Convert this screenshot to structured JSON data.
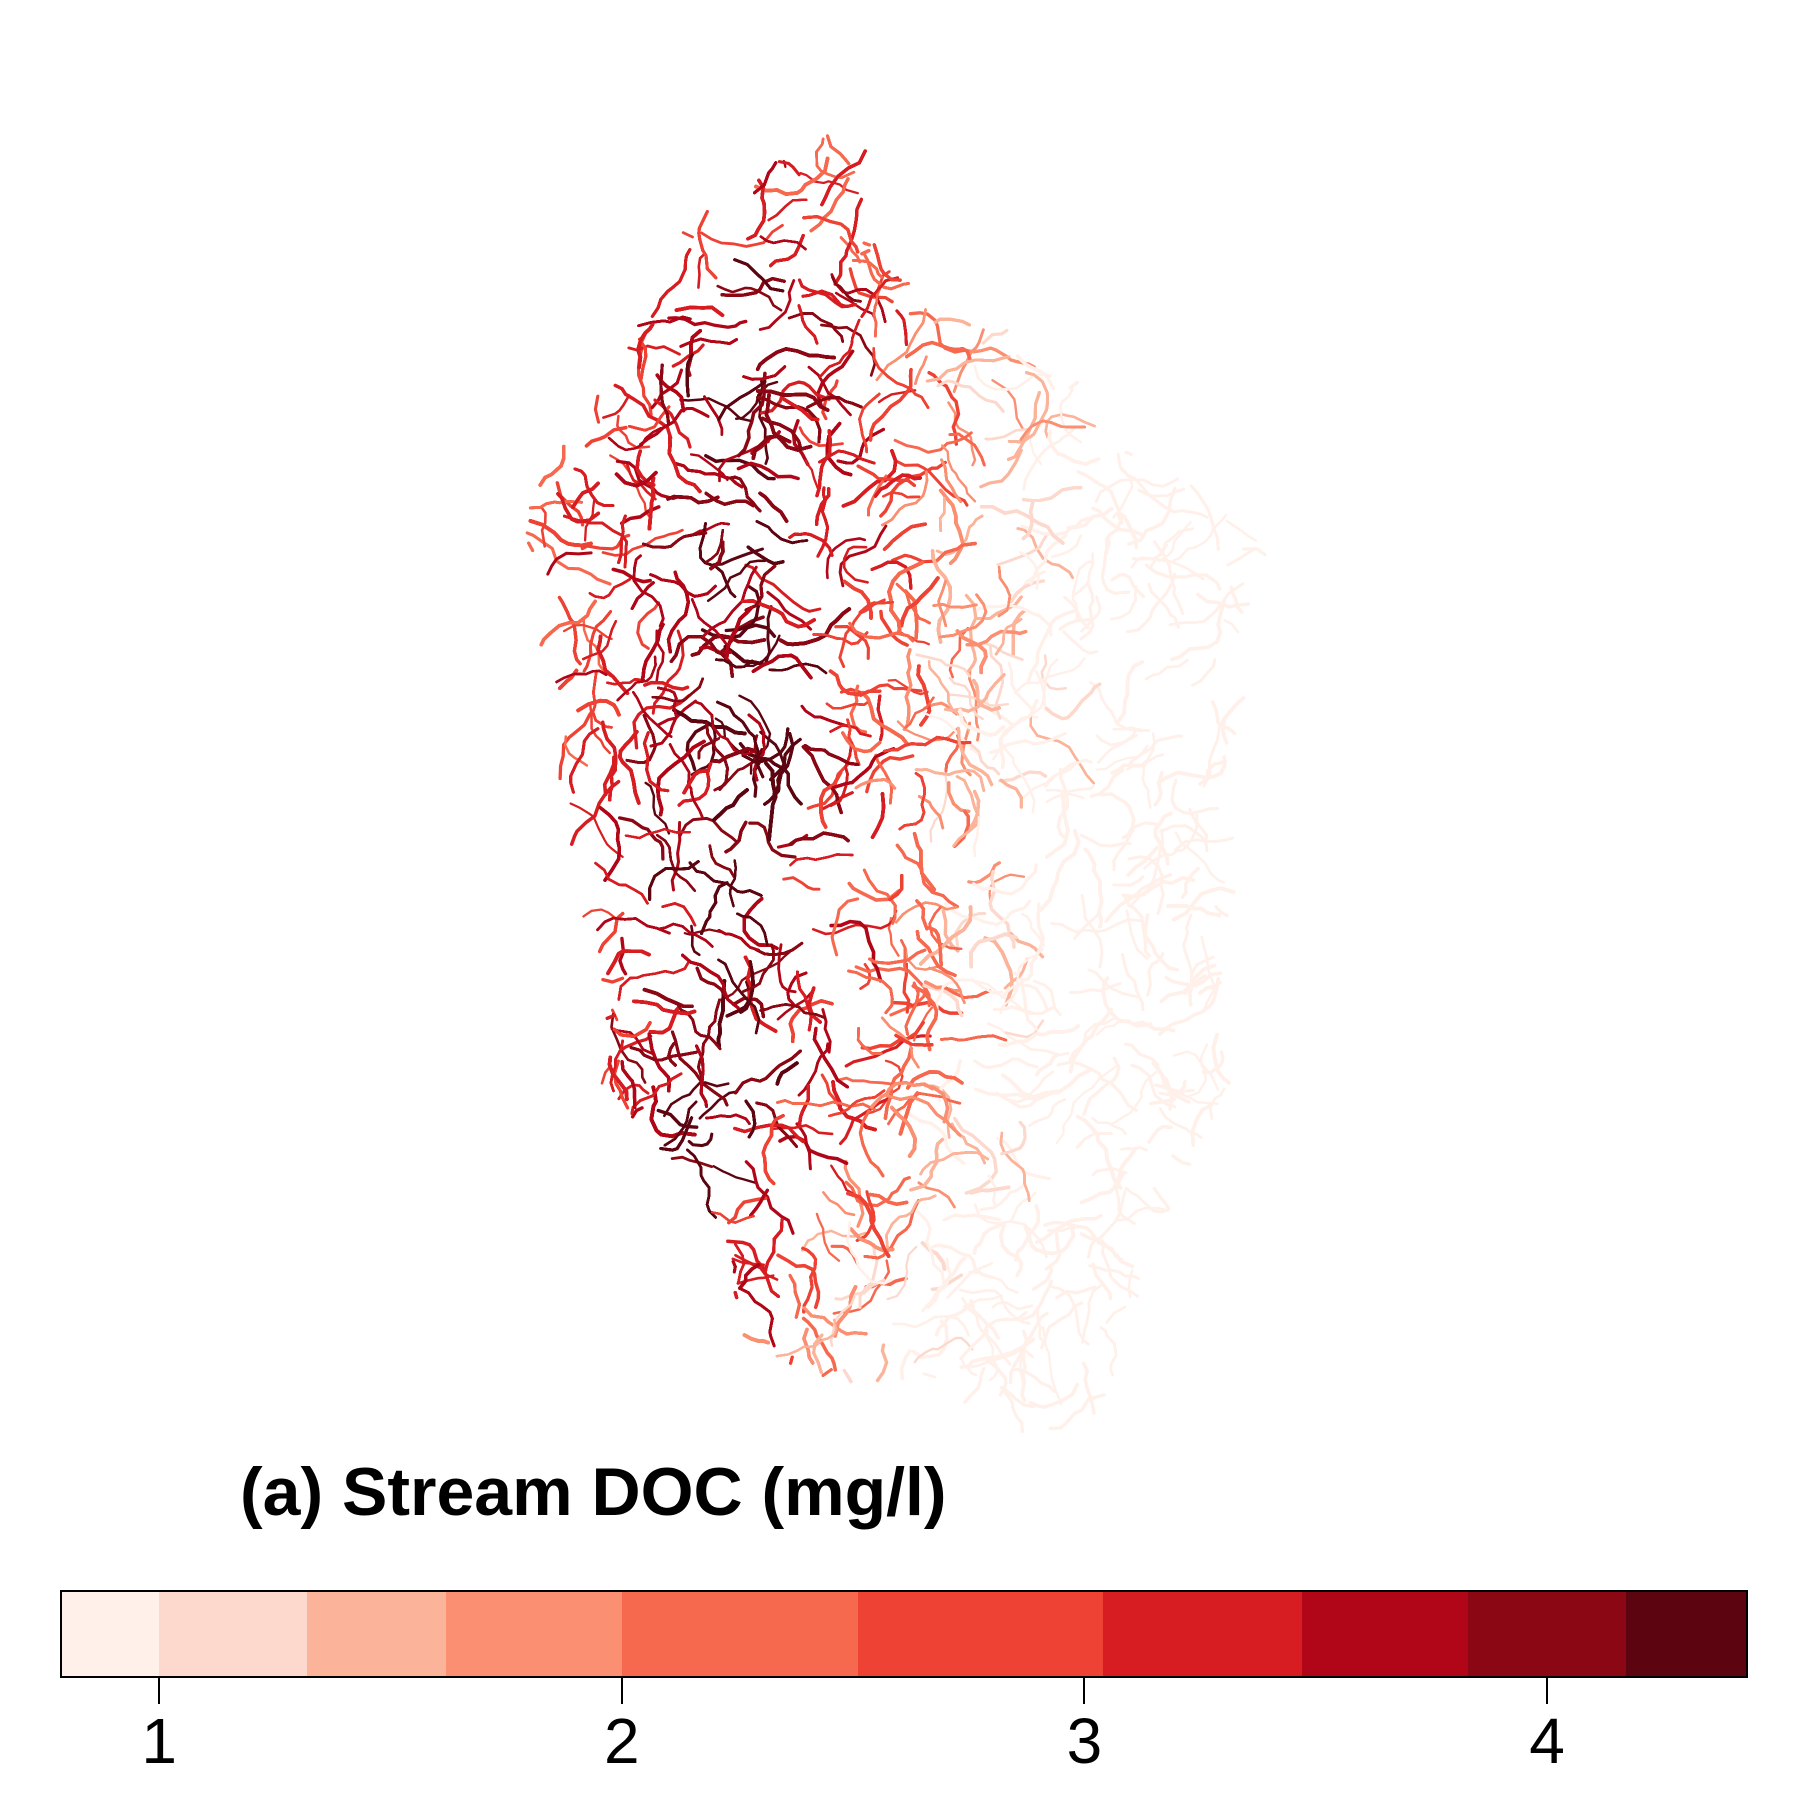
{
  "title": "(a) Stream DOC (mg/l)",
  "legend": {
    "unit": "mg/l",
    "range": [
      0.79,
      4.43
    ],
    "ticks": [
      "1",
      "2",
      "3",
      "4"
    ],
    "tick_values": [
      1,
      2,
      3,
      4
    ],
    "bins": [
      {
        "from": 0.79,
        "to": 1.0,
        "color": "#fff0ea"
      },
      {
        "from": 1.0,
        "to": 1.32,
        "color": "#fcd9cc"
      },
      {
        "from": 1.32,
        "to": 1.62,
        "color": "#fbb39a"
      },
      {
        "from": 1.62,
        "to": 2.0,
        "color": "#fa8f71"
      },
      {
        "from": 2.0,
        "to": 2.51,
        "color": "#f6694f"
      },
      {
        "from": 2.51,
        "to": 3.04,
        "color": "#ed4234"
      },
      {
        "from": 3.04,
        "to": 3.47,
        "color": "#d71d21"
      },
      {
        "from": 3.47,
        "to": 3.83,
        "color": "#b10617"
      },
      {
        "from": 3.83,
        "to": 4.17,
        "color": "#8a0713"
      },
      {
        "from": 4.17,
        "to": 4.43,
        "color": "#5c0510"
      }
    ]
  }
}
